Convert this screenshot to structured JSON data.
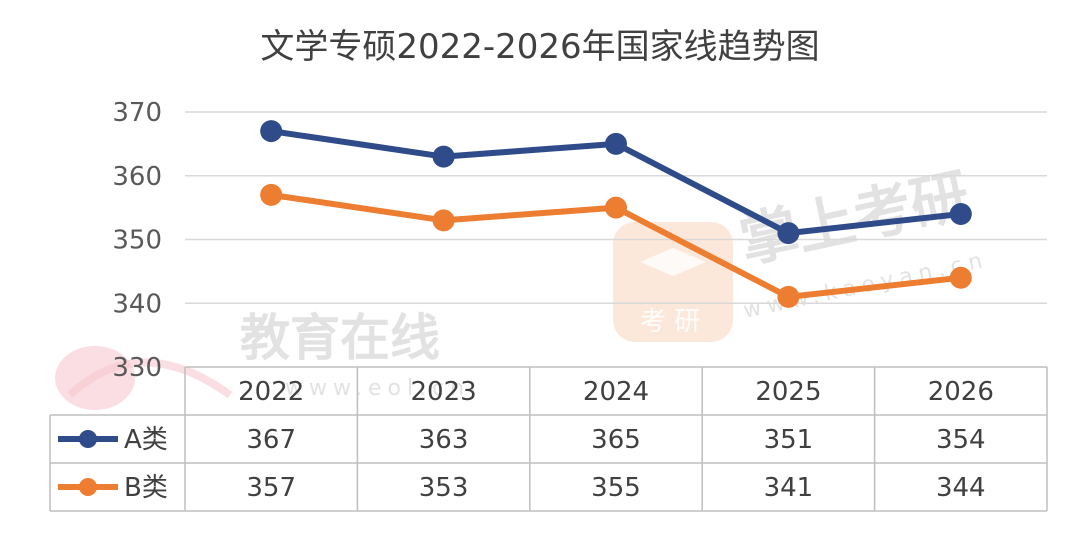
{
  "chart_data": {
    "type": "line",
    "title": "文学专硕2022-2026年国家线趋势图",
    "categories": [
      "2022",
      "2023",
      "2024",
      "2025",
      "2026"
    ],
    "series": [
      {
        "name": "A类",
        "values": [
          367,
          363,
          365,
          351,
          354
        ],
        "color": "#2f4b8a"
      },
      {
        "name": "B类",
        "values": [
          357,
          353,
          355,
          341,
          344
        ],
        "color": "#ed7d31"
      }
    ],
    "ylim": [
      330,
      370
    ],
    "yticks": [
      330,
      340,
      350,
      360,
      370
    ],
    "grid": true,
    "data_table": true
  },
  "watermarks": {
    "left_text": "教育在线",
    "left_url": "www.eol.cn",
    "right_text": "掌上考研",
    "right_url": "www.kaoyan.cn",
    "badge_text": "考 研"
  }
}
